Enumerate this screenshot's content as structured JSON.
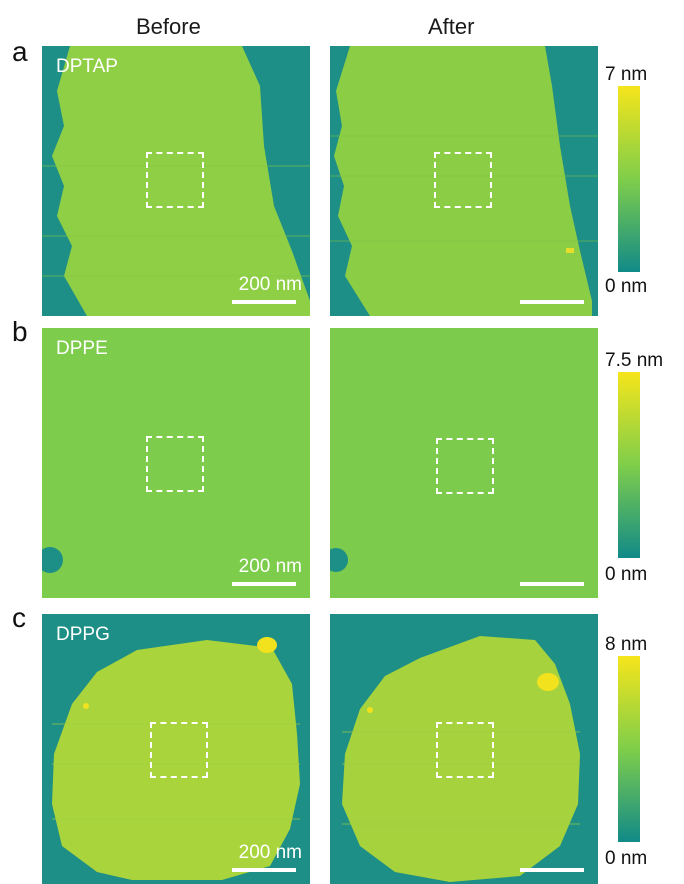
{
  "columns": {
    "before": "Before",
    "after": "After"
  },
  "colormap": {
    "low": "#118a88",
    "mid": "#7fce4a",
    "high": "#f6e51b"
  },
  "panels": [
    {
      "letter": "a",
      "sample": "DPTAP",
      "scalebar": "200 nm",
      "colorbar_max": "7 nm",
      "colorbar_min": "0 nm"
    },
    {
      "letter": "b",
      "sample": "DPPE",
      "scalebar": "200 nm",
      "colorbar_max": "7.5 nm",
      "colorbar_min": "0 nm"
    },
    {
      "letter": "c",
      "sample": "DPPG",
      "scalebar": "200 nm",
      "colorbar_max": "8 nm",
      "colorbar_min": "0 nm"
    }
  ]
}
